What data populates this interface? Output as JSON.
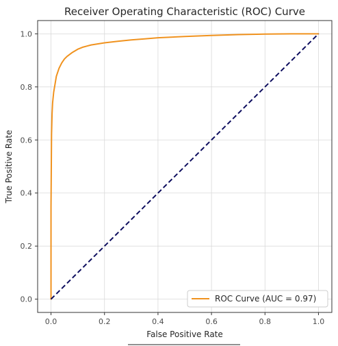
{
  "chart_data": {
    "type": "line",
    "title": "Receiver Operating Characteristic (ROC) Curve",
    "xlabel": "False Positive Rate",
    "ylabel": "True Positive Rate",
    "xlim": [
      -0.05,
      1.05
    ],
    "ylim": [
      -0.05,
      1.05
    ],
    "xticks": [
      0.0,
      0.2,
      0.4,
      0.6,
      0.8,
      1.0
    ],
    "yticks": [
      0.0,
      0.2,
      0.4,
      0.6,
      0.8,
      1.0
    ],
    "xtick_labels": [
      "0.0",
      "0.2",
      "0.4",
      "0.6",
      "0.8",
      "1.0"
    ],
    "ytick_labels": [
      "0.0",
      "0.2",
      "0.4",
      "0.6",
      "0.8",
      "1.0"
    ],
    "grid": true,
    "legend_position": "bottom-right",
    "series": [
      {
        "name": "ROC Curve (AUC = 0.97)",
        "color": "#f0921e",
        "style": "solid",
        "x": [
          0.0,
          0.0,
          0.002,
          0.004,
          0.006,
          0.008,
          0.01,
          0.015,
          0.02,
          0.03,
          0.04,
          0.05,
          0.06,
          0.08,
          0.1,
          0.12,
          0.15,
          0.2,
          0.25,
          0.3,
          0.35,
          0.4,
          0.5,
          0.6,
          0.7,
          0.8,
          0.9,
          1.0
        ],
        "y": [
          0.0,
          0.35,
          0.62,
          0.7,
          0.74,
          0.76,
          0.78,
          0.81,
          0.84,
          0.87,
          0.89,
          0.905,
          0.915,
          0.93,
          0.942,
          0.95,
          0.958,
          0.966,
          0.972,
          0.977,
          0.981,
          0.985,
          0.99,
          0.994,
          0.997,
          0.999,
          1.0,
          1.0
        ]
      },
      {
        "name": "",
        "color": "#0d0d5e",
        "style": "dashed",
        "x": [
          0.0,
          1.0
        ],
        "y": [
          0.0,
          1.0
        ]
      }
    ]
  }
}
